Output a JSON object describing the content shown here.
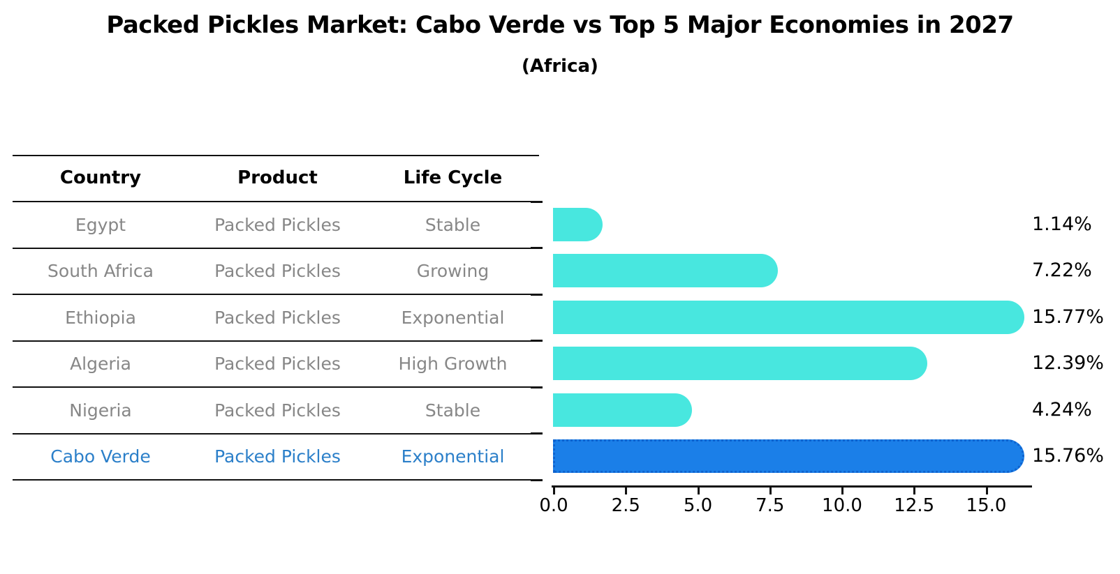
{
  "title": "Packed Pickles Market: Cabo Verde vs Top 5 Major Economies in 2027",
  "subtitle": "(Africa)",
  "table": {
    "headers": [
      "Country",
      "Product",
      "Life Cycle"
    ],
    "rows": [
      {
        "country": "Egypt",
        "product": "Packed Pickles",
        "life_cycle": "Stable"
      },
      {
        "country": "South Africa",
        "product": "Packed Pickles",
        "life_cycle": "Growing"
      },
      {
        "country": "Ethiopia",
        "product": "Packed Pickles",
        "life_cycle": "Exponential"
      },
      {
        "country": "Algeria",
        "product": "Packed Pickles",
        "life_cycle": "High Growth"
      },
      {
        "country": "Nigeria",
        "product": "Packed Pickles",
        "life_cycle": "Stable"
      },
      {
        "country": "Cabo Verde",
        "product": "Packed Pickles",
        "life_cycle": "Exponential"
      }
    ],
    "highlighted_row": "Cabo Verde"
  },
  "chart_data": {
    "type": "bar",
    "orientation": "horizontal",
    "title": "Packed Pickles Market: Cabo Verde vs Top 5 Major Economies in 2027",
    "subtitle": "(Africa)",
    "categories": [
      "Egypt",
      "South Africa",
      "Ethiopia",
      "Algeria",
      "Nigeria",
      "Cabo Verde"
    ],
    "values": [
      1.14,
      7.22,
      15.77,
      12.39,
      4.24,
      15.76
    ],
    "value_labels": [
      "1.14%",
      "7.22%",
      "15.77%",
      "12.39%",
      "4.24%",
      "15.76%"
    ],
    "x_tick_labels": [
      "0.0",
      "2.5",
      "5.0",
      "7.5",
      "10.0",
      "12.5",
      "15.0"
    ],
    "x_tick_values": [
      0,
      2.5,
      5,
      7.5,
      10,
      12.5,
      15
    ],
    "xlim": [
      0,
      16.6
    ],
    "grid": false,
    "legend": "none",
    "bar_color": "#48e7df",
    "highlight_index": 5,
    "highlight_bar_color": "#1b7fe8",
    "highlight_bar_border_color": "#0e63cf",
    "highlight_text_color": "#2b7fc9",
    "table_text_color": "#878787",
    "table_header_color": "#000000"
  }
}
